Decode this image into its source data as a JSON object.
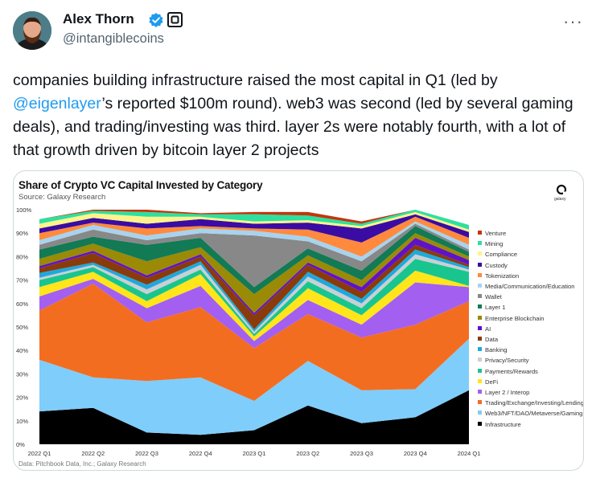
{
  "author": {
    "name": "Alex Thorn",
    "handle": "@intangiblecoins"
  },
  "icons": {
    "verified": "verified-badge-icon",
    "affiliate": "affiliate-logo-icon",
    "more": "more-options-icon"
  },
  "more_label": "···",
  "tweet": {
    "part1": "companies building infrastructure raised the most capital in Q1 (led by ",
    "mention": "@eigenlayer",
    "part2": "’s reported $100m round). web3 was second (led by several gaming deals), and trading/investing was third. layer 2s were notably fourth, with a lot of that growth driven by bitcoin layer 2 projects"
  },
  "chart_data": {
    "type": "area",
    "title": "Share of Crypto VC Capital Invested by Category",
    "subtitle": "Source: Galaxy Research",
    "footnote": "Data: Pitchbook Data, Inc.; Galaxy Research",
    "logo_text": "galaxy",
    "ylim": [
      0,
      100
    ],
    "y_ticks": [
      "0%",
      "10%",
      "20%",
      "30%",
      "40%",
      "50%",
      "60%",
      "70%",
      "80%",
      "90%",
      "100%"
    ],
    "categories": [
      "2022 Q1",
      "2022 Q2",
      "2022 Q3",
      "2022 Q4",
      "2023 Q1",
      "2023 Q2",
      "2023 Q3",
      "2023 Q4",
      "2024 Q1"
    ],
    "series": [
      {
        "name": "Infrastructure",
        "color": "#000000",
        "values": [
          14,
          15.5,
          5,
          4,
          6,
          16.5,
          9,
          11.5,
          23
        ]
      },
      {
        "name": "Web3/NFT/DAO/Metaverse/Gaming",
        "color": "#7fcdfa",
        "values": [
          22,
          13,
          22,
          24.5,
          12.5,
          19,
          14,
          12,
          22
        ]
      },
      {
        "name": "Trading/Exchange/Investing/Lending",
        "color": "#f36d21",
        "values": [
          21,
          40,
          25,
          30,
          22.5,
          20,
          22.5,
          27.5,
          16
        ]
      },
      {
        "name": "Layer 2 / Interop",
        "color": "#a35ff0",
        "values": [
          6,
          2,
          6,
          9,
          3,
          6,
          5.5,
          18,
          6
        ]
      },
      {
        "name": "DeFi",
        "color": "#ffe51a",
        "values": [
          4,
          3,
          3,
          5,
          2,
          5,
          4,
          5,
          0.5
        ]
      },
      {
        "name": "Payments/Rewards",
        "color": "#19c58e",
        "values": [
          3,
          2,
          3,
          2,
          1,
          3,
          3,
          5,
          6
        ]
      },
      {
        "name": "Privacy/Security",
        "color": "#c9cfd3",
        "values": [
          1,
          1,
          2,
          2,
          1,
          2,
          2,
          2,
          1
        ]
      },
      {
        "name": "Banking",
        "color": "#1ea9dc",
        "values": [
          2,
          1,
          2,
          1.5,
          1,
          2,
          2,
          2,
          1
        ]
      },
      {
        "name": "Data",
        "color": "#8a3b0c",
        "values": [
          2,
          4,
          3,
          2,
          6,
          3,
          3,
          2,
          1
        ]
      },
      {
        "name": "AI",
        "color": "#6012c7",
        "values": [
          1,
          1,
          1,
          1,
          1,
          1,
          2,
          3,
          2
        ]
      },
      {
        "name": "Enterprise Blockchain",
        "color": "#9a8a06",
        "values": [
          3,
          3,
          6,
          3,
          8,
          3,
          3,
          2,
          1.5
        ]
      },
      {
        "name": "Layer 1",
        "color": "#127a55",
        "values": [
          4,
          3,
          7,
          4,
          3,
          3,
          4,
          3,
          2
        ]
      },
      {
        "name": "Wallet",
        "color": "#888888",
        "values": [
          2,
          3,
          2,
          2,
          22,
          3,
          4,
          1,
          1
        ]
      },
      {
        "name": "Media/Communication/Education",
        "color": "#a7d3ef",
        "values": [
          2,
          2,
          2,
          2,
          2,
          2,
          2,
          1,
          2
        ]
      },
      {
        "name": "Tokenization",
        "color": "#ff8a3d",
        "values": [
          3,
          1,
          3,
          1,
          1,
          3,
          6,
          2,
          3
        ]
      },
      {
        "name": "Custody",
        "color": "#3a0ca3",
        "values": [
          2,
          2,
          2,
          3,
          2,
          3,
          6,
          1,
          2.5
        ]
      },
      {
        "name": "Compliance",
        "color": "#fff38a",
        "values": [
          2,
          2,
          3,
          1,
          1,
          1,
          1,
          1,
          1
        ]
      },
      {
        "name": "Mining",
        "color": "#2de0a0",
        "values": [
          2,
          1,
          2,
          1,
          3,
          2,
          1,
          2,
          2
        ]
      },
      {
        "name": "Venture",
        "color": "#c0370c",
        "values": [
          0,
          1,
          1.5,
          0.5,
          1,
          1.5,
          1,
          1,
          0
        ]
      }
    ]
  }
}
